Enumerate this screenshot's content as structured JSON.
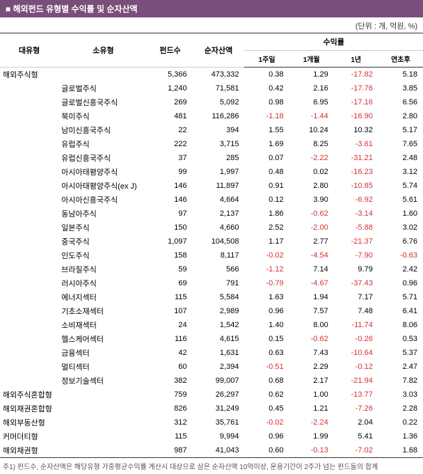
{
  "title": "해외펀드 유형별 수익률 및 순자산액",
  "unit_label": "(단위 : 개, 억원, %)",
  "columns": {
    "cat": "대유형",
    "sub": "소유형",
    "count": "펀드수",
    "nav": "순자산액",
    "returns": "수익률",
    "r1w": "1주일",
    "r1m": "1개월",
    "r1y": "1년",
    "ytd": "연초후"
  },
  "rows": [
    {
      "cat": "해외주식형",
      "sub": "",
      "count": "5,366",
      "nav": "473,332",
      "r1w": "0.38",
      "r1m": "1.29",
      "r1y": "-17.82",
      "ytd": "5.18"
    },
    {
      "cat": "",
      "sub": "글로벌주식",
      "count": "1,240",
      "nav": "71,581",
      "r1w": "0.42",
      "r1m": "2.16",
      "r1y": "-17.76",
      "ytd": "3.85"
    },
    {
      "cat": "",
      "sub": "글로벌신흥국주식",
      "count": "269",
      "nav": "5,092",
      "r1w": "0.98",
      "r1m": "6.95",
      "r1y": "-17.16",
      "ytd": "6.56"
    },
    {
      "cat": "",
      "sub": "북미주식",
      "count": "481",
      "nav": "116,286",
      "r1w": "-1.18",
      "r1m": "-1.44",
      "r1y": "-16.90",
      "ytd": "2.80"
    },
    {
      "cat": "",
      "sub": "남미신흥국주식",
      "count": "22",
      "nav": "394",
      "r1w": "1.55",
      "r1m": "10.24",
      "r1y": "10.32",
      "ytd": "5.17"
    },
    {
      "cat": "",
      "sub": "유럽주식",
      "count": "222",
      "nav": "3,715",
      "r1w": "1.69",
      "r1m": "8.25",
      "r1y": "-3.61",
      "ytd": "7.65"
    },
    {
      "cat": "",
      "sub": "유럽신흥국주식",
      "count": "37",
      "nav": "285",
      "r1w": "0.07",
      "r1m": "-2.22",
      "r1y": "-31.21",
      "ytd": "2.48"
    },
    {
      "cat": "",
      "sub": "아시아태평양주식",
      "count": "99",
      "nav": "1,997",
      "r1w": "0.48",
      "r1m": "0.02",
      "r1y": "-16.23",
      "ytd": "3.12"
    },
    {
      "cat": "",
      "sub": "아시아태평양주식(ex J)",
      "count": "146",
      "nav": "11,897",
      "r1w": "0.91",
      "r1m": "2.80",
      "r1y": "-10.85",
      "ytd": "5.74"
    },
    {
      "cat": "",
      "sub": "아시아신흥국주식",
      "count": "146",
      "nav": "4,664",
      "r1w": "0.12",
      "r1m": "3.90",
      "r1y": "-6.92",
      "ytd": "5.61"
    },
    {
      "cat": "",
      "sub": "동남아주식",
      "count": "97",
      "nav": "2,137",
      "r1w": "1.86",
      "r1m": "-0.62",
      "r1y": "-3.14",
      "ytd": "1.60"
    },
    {
      "cat": "",
      "sub": "일본주식",
      "count": "150",
      "nav": "4,660",
      "r1w": "2.52",
      "r1m": "-2.00",
      "r1y": "-5.88",
      "ytd": "3.02"
    },
    {
      "cat": "",
      "sub": "중국주식",
      "count": "1,097",
      "nav": "104,508",
      "r1w": "1.17",
      "r1m": "2.77",
      "r1y": "-21.37",
      "ytd": "6.76"
    },
    {
      "cat": "",
      "sub": "인도주식",
      "count": "158",
      "nav": "8,117",
      "r1w": "-0.02",
      "r1m": "-4.54",
      "r1y": "-7.90",
      "ytd": "-0.63"
    },
    {
      "cat": "",
      "sub": "브라질주식",
      "count": "59",
      "nav": "566",
      "r1w": "-1.12",
      "r1m": "7.14",
      "r1y": "9.79",
      "ytd": "2.42"
    },
    {
      "cat": "",
      "sub": "러시아주식",
      "count": "69",
      "nav": "791",
      "r1w": "-0.79",
      "r1m": "-4.67",
      "r1y": "-37.43",
      "ytd": "0.96"
    },
    {
      "cat": "",
      "sub": "에너지섹터",
      "count": "115",
      "nav": "5,584",
      "r1w": "1.63",
      "r1m": "1.94",
      "r1y": "7.17",
      "ytd": "5.71"
    },
    {
      "cat": "",
      "sub": "기초소재섹터",
      "count": "107",
      "nav": "2,989",
      "r1w": "0.96",
      "r1m": "7.57",
      "r1y": "7.48",
      "ytd": "6.41"
    },
    {
      "cat": "",
      "sub": "소비재섹터",
      "count": "24",
      "nav": "1,542",
      "r1w": "1.40",
      "r1m": "8.00",
      "r1y": "-11.74",
      "ytd": "8.06"
    },
    {
      "cat": "",
      "sub": "헬스케어섹터",
      "count": "116",
      "nav": "4,615",
      "r1w": "0.15",
      "r1m": "-0.62",
      "r1y": "-0.26",
      "ytd": "0.53"
    },
    {
      "cat": "",
      "sub": "금융섹터",
      "count": "42",
      "nav": "1,631",
      "r1w": "0.63",
      "r1m": "7.43",
      "r1y": "-10.64",
      "ytd": "5.37"
    },
    {
      "cat": "",
      "sub": "멀티섹터",
      "count": "60",
      "nav": "2,394",
      "r1w": "-0.51",
      "r1m": "2.29",
      "r1y": "-0.12",
      "ytd": "2.47"
    },
    {
      "cat": "",
      "sub": "정보기술섹터",
      "count": "382",
      "nav": "99,007",
      "r1w": "0.68",
      "r1m": "2.17",
      "r1y": "-21.94",
      "ytd": "7.82"
    },
    {
      "cat": "해외주식혼합형",
      "sub": "",
      "count": "759",
      "nav": "26,297",
      "r1w": "0.62",
      "r1m": "1.00",
      "r1y": "-13.77",
      "ytd": "3.03"
    },
    {
      "cat": "해외채권혼합형",
      "sub": "",
      "count": "826",
      "nav": "31,249",
      "r1w": "0.45",
      "r1m": "1.21",
      "r1y": "-7.26",
      "ytd": "2.28"
    },
    {
      "cat": "해외부동산형",
      "sub": "",
      "count": "312",
      "nav": "35,761",
      "r1w": "-0.02",
      "r1m": "-2.24",
      "r1y": "2.04",
      "ytd": "0.22"
    },
    {
      "cat": "커머더티형",
      "sub": "",
      "count": "115",
      "nav": "9,994",
      "r1w": "0.96",
      "r1m": "1.99",
      "r1y": "5.41",
      "ytd": "1.36"
    },
    {
      "cat": "해외채권형",
      "sub": "",
      "count": "987",
      "nav": "41,043",
      "r1w": "0.60",
      "r1m": "-0.13",
      "r1y": "-7.02",
      "ytd": "1.68"
    }
  ],
  "footnote": "주1) 펀드수, 순자산액은 해당유형 가중평균수익률 계산시 대상으로 삼은 순자산액 10억이상, 운용기간이 2주가 넘는 펀드들의 합계"
}
